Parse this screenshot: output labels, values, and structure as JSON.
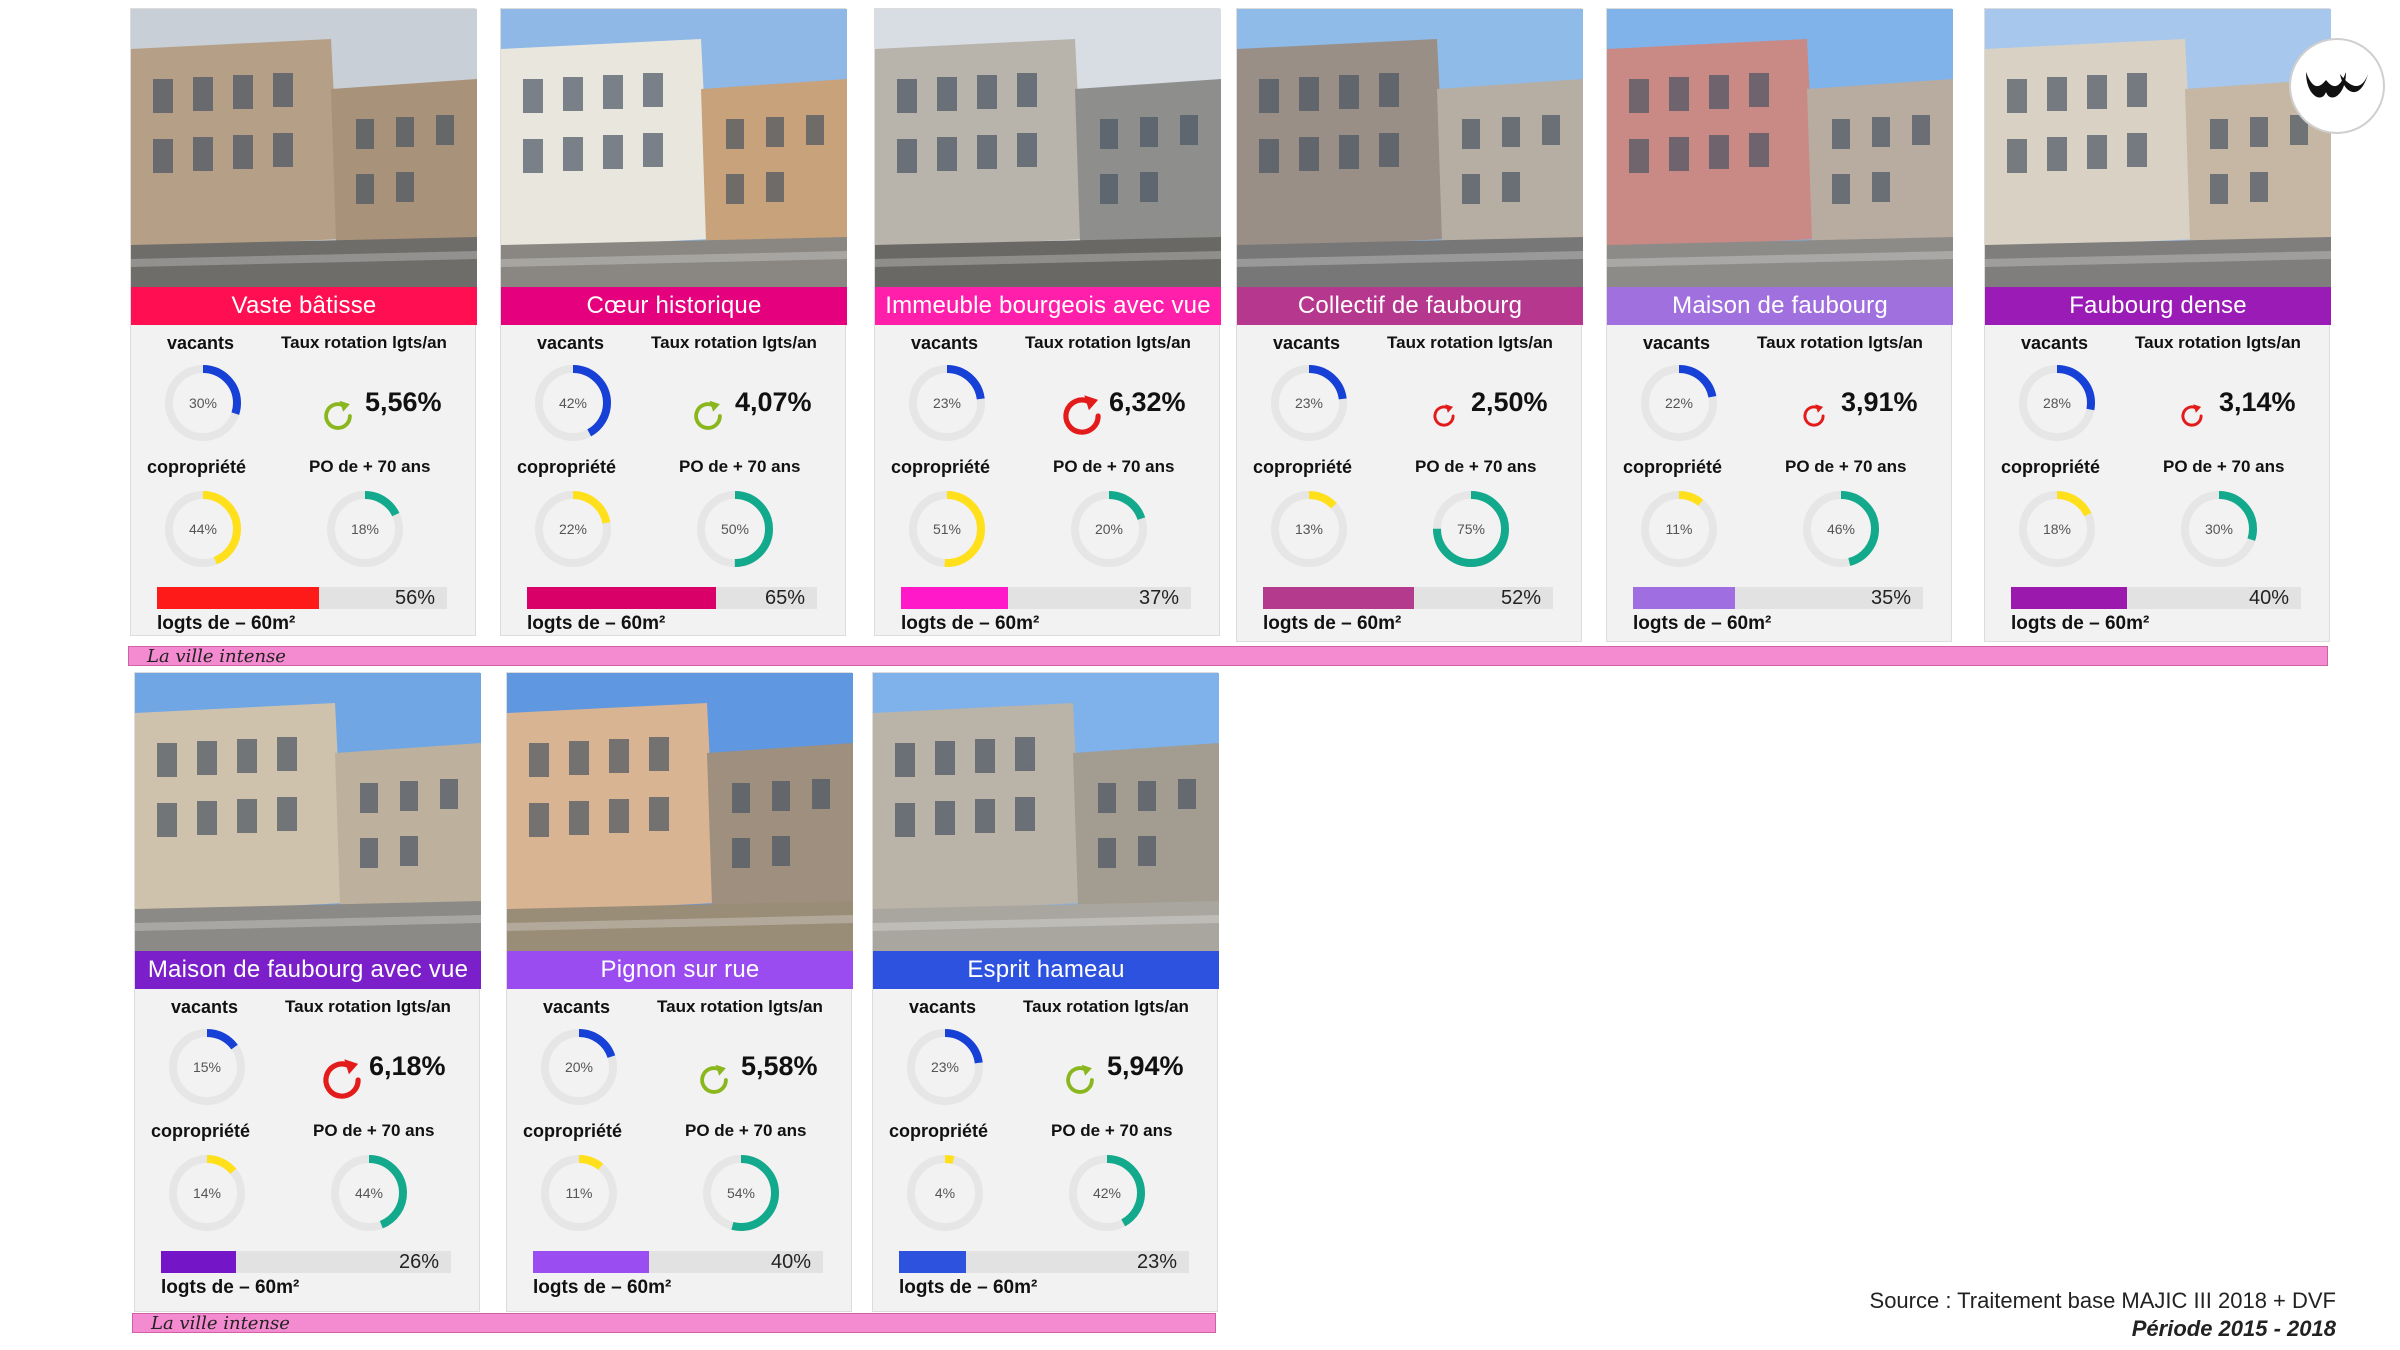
{
  "cards": [
    {
      "name": "Vaste bâtisse",
      "color": "#ff0f52",
      "bar_color": "#ff1a1a",
      "vacants": "30%",
      "vacants_value": 30,
      "rotation": "5,56%",
      "rotation_color": "#8ab61e",
      "copro": "44%",
      "copro_value": 44,
      "po70": "18%",
      "po70_value": 18,
      "logts_pct": "56%",
      "logts_value": 56
    },
    {
      "name": "Cœur historique",
      "color": "#e5007e",
      "bar_color": "#d90067",
      "vacants": "42%",
      "vacants_value": 42,
      "rotation": "4,07%",
      "rotation_color": "#8ab61e",
      "copro": "22%",
      "copro_value": 22,
      "po70": "50%",
      "po70_value": 50,
      "logts_pct": "65%",
      "logts_value": 65
    },
    {
      "name": "Immeuble bourgeois avec vue",
      "color": "#ff1faa",
      "bar_color": "#ff19c8",
      "vacants": "23%",
      "vacants_value": 23,
      "rotation": "6,32%",
      "rotation_color": "#e31b1b",
      "copro": "51%",
      "copro_value": 51,
      "po70": "20%",
      "po70_value": 20,
      "logts_pct": "37%",
      "logts_value": 37
    },
    {
      "name": "Collectif de faubourg",
      "color": "#b5378e",
      "bar_color": "#b33a8c",
      "vacants": "23%",
      "vacants_value": 23,
      "rotation": "2,50%",
      "rotation_color": "#e31b1b",
      "copro": "13%",
      "copro_value": 13,
      "po70": "75%",
      "po70_value": 75,
      "logts_pct": "52%",
      "logts_value": 52
    },
    {
      "name": "Maison de faubourg",
      "color": "#a070df",
      "bar_color": "#9f6ee0",
      "vacants": "22%",
      "vacants_value": 22,
      "rotation": "3,91%",
      "rotation_color": "#e31b1b",
      "copro": "11%",
      "copro_value": 11,
      "po70": "46%",
      "po70_value": 46,
      "logts_pct": "35%",
      "logts_value": 35
    },
    {
      "name": "Faubourg dense",
      "color": "#9b1bb7",
      "bar_color": "#9b19ad",
      "vacants": "28%",
      "vacants_value": 28,
      "rotation": "3,14%",
      "rotation_color": "#e31b1b",
      "copro": "18%",
      "copro_value": 18,
      "po70": "30%",
      "po70_value": 30,
      "logts_pct": "40%",
      "logts_value": 40
    },
    {
      "name": "Maison de faubourg avec vue",
      "color": "#7a1fc9",
      "bar_color": "#7415c7",
      "vacants": "15%",
      "vacants_value": 15,
      "rotation": "6,18%",
      "rotation_color": "#e31b1b",
      "copro": "14%",
      "copro_value": 14,
      "po70": "44%",
      "po70_value": 44,
      "logts_pct": "26%",
      "logts_value": 26
    },
    {
      "name": "Pignon sur rue",
      "color": "#9a4cf0",
      "bar_color": "#9a4ef2",
      "vacants": "20%",
      "vacants_value": 20,
      "rotation": "5,58%",
      "rotation_color": "#8ab61e",
      "copro": "11%",
      "copro_value": 11,
      "po70": "54%",
      "po70_value": 54,
      "logts_pct": "40%",
      "logts_value": 40
    },
    {
      "name": "Esprit hameau",
      "color": "#2d52e0",
      "bar_color": "#2d52de",
      "vacants": "23%",
      "vacants_value": 23,
      "rotation": "5,94%",
      "rotation_color": "#8ab61e",
      "copro": "4%",
      "copro_value": 4,
      "po70": "42%",
      "po70_value": 42,
      "logts_pct": "23%",
      "logts_value": 23
    }
  ],
  "labels": {
    "vacants": "vacants",
    "rotation": "Taux rotation lgts/an",
    "copro": "copropriété",
    "po70": "PO de + 70 ans",
    "logts": "logts de – 60m²"
  },
  "ring_colors": {
    "vacants": "#1640d6",
    "copro": "#ffe01a",
    "po70": "#13a98c",
    "track": "#e6e6e6"
  },
  "strips": [
    "La ville intense",
    "La ville intense"
  ],
  "source": {
    "line1": "Source : Traitement base MAJIC III 2018 + DVF",
    "line2": "Période 2015 - 2018"
  }
}
